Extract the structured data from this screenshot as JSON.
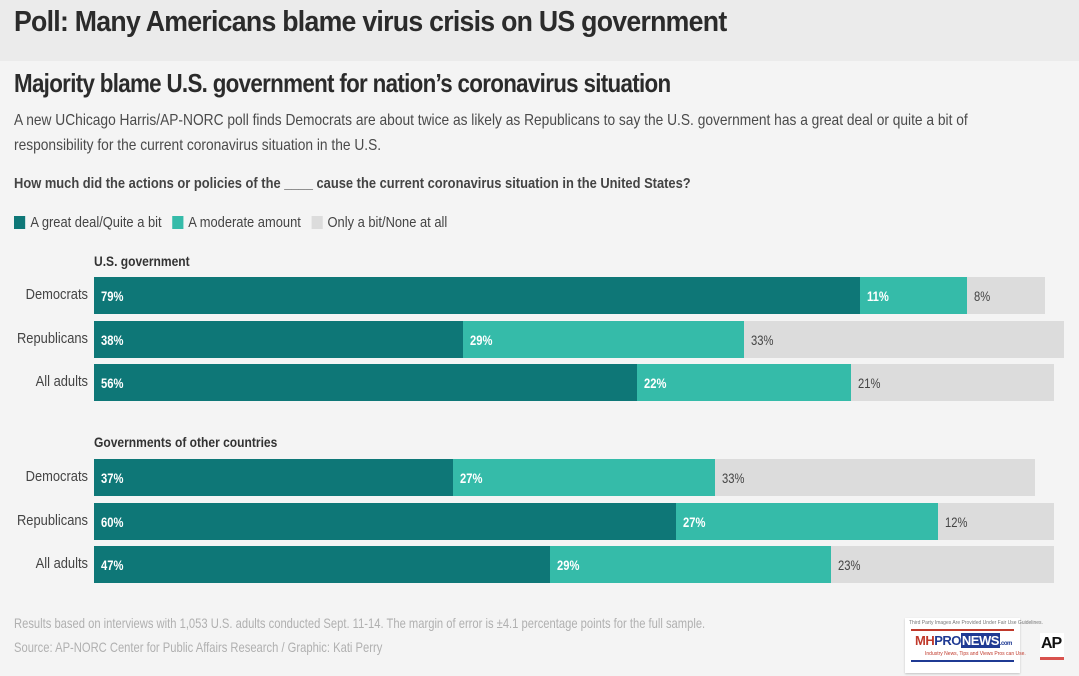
{
  "banner": {
    "title": "Poll: Many Americans blame virus crisis on US government"
  },
  "headline": "Majority blame U.S. government for nation’s coronavirus situation",
  "intro": "A new UChicago Harris/AP-NORC poll finds Democrats are about twice as likely as Republicans to say the U.S. government has a great deal or quite a bit of responsibility for the current coronavirus situation in the U.S.",
  "question": "How much did the actions or policies of the ____ cause the current coronavirus situation in the United States?",
  "colors": {
    "great_deal": "#0e7777",
    "moderate": "#35bba9",
    "little": "#dcdcdc"
  },
  "chart_data": {
    "type": "bar",
    "orientation": "horizontal",
    "stacked": true,
    "title": "How much did the actions or policies of the ____ cause the current coronavirus situation in the United States?",
    "legend": [
      "A great deal/Quite a bit",
      "A moderate amount",
      "Only a bit/None at all"
    ],
    "legend_position": "top-left",
    "unit": "%",
    "xlim": [
      0,
      100
    ],
    "groups": [
      {
        "title": "U.S. government",
        "categories": [
          "Democrats",
          "Republicans",
          "All adults"
        ],
        "series": [
          {
            "name": "A great deal/Quite a bit",
            "values": [
              79,
              38,
              56
            ]
          },
          {
            "name": "A moderate amount",
            "values": [
              11,
              29,
              22
            ]
          },
          {
            "name": "Only a bit/None at all",
            "values": [
              8,
              33,
              21
            ]
          }
        ]
      },
      {
        "title": "Governments of other countries",
        "categories": [
          "Democrats",
          "Republicans",
          "All adults"
        ],
        "series": [
          {
            "name": "A great deal/Quite a bit",
            "values": [
              37,
              60,
              47
            ]
          },
          {
            "name": "A moderate amount",
            "values": [
              27,
              27,
              29
            ]
          },
          {
            "name": "Only a bit/None at all",
            "values": [
              33,
              12,
              23
            ]
          }
        ]
      }
    ]
  },
  "footnote": "Results based on interviews with 1,053 U.S. adults conducted Sept. 11-14. The margin of error is ±4.1 percentage points for the full sample.",
  "source": "Source: AP-NORC Center for Public Affairs Research / Graphic: Kati Perry",
  "watermark": {
    "top": "Third Party Images Are Provided Under Fair Use Guidelines.",
    "mh": "MH",
    "pro": "PRO",
    "news": "NEWS",
    "com": ".com",
    "tagline": "Industry News, Tips and Views Pros can Use."
  },
  "ap_logo": "AP"
}
